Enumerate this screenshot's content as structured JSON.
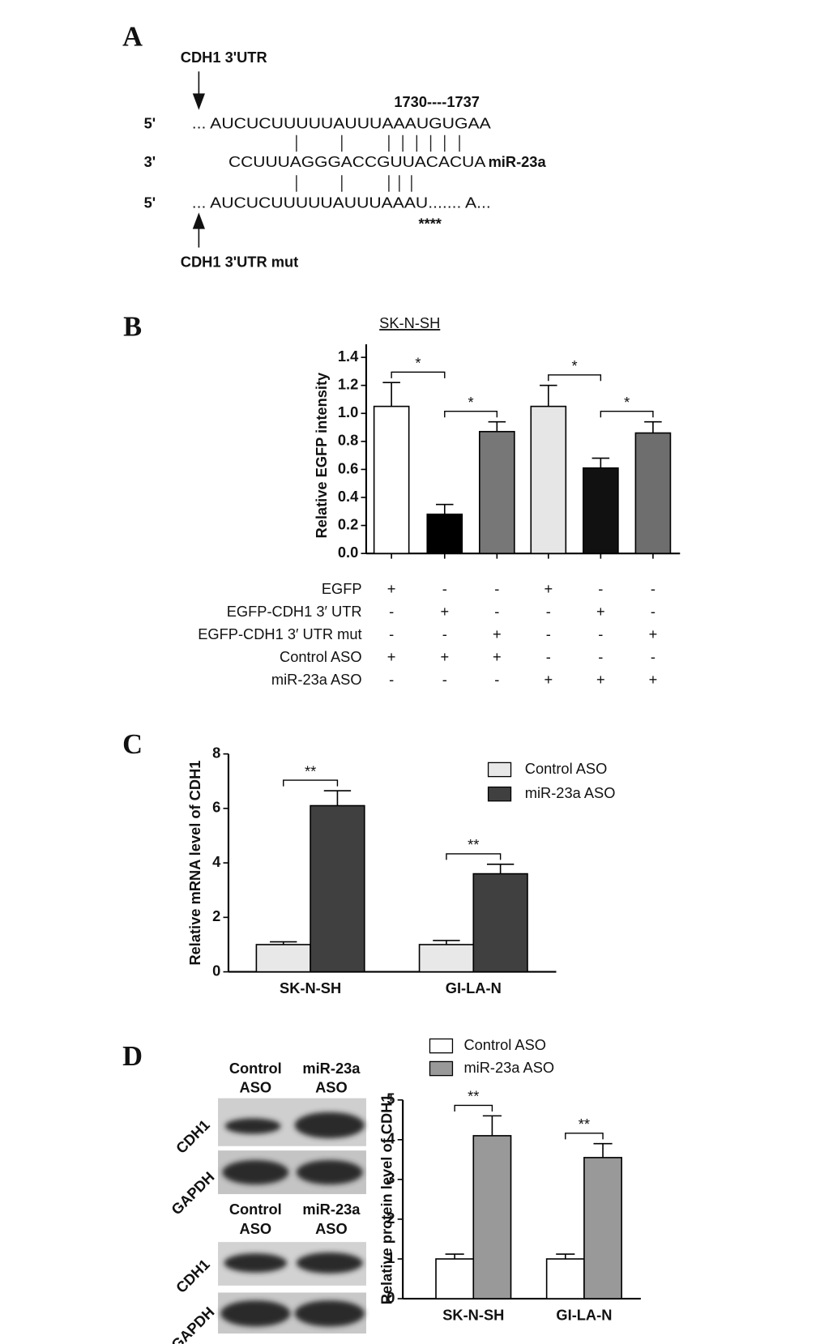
{
  "panel_labels": [
    "A",
    "B",
    "C",
    "D"
  ],
  "sequence": {
    "title": "CDH1 3'UTR",
    "position": "1730----1737",
    "rows": [
      {
        "end": "5'",
        "seq": "... AUCUCUUUUUAUUUAAAUGUGAA"
      },
      {
        "end": "3'",
        "seq": "CCUUUAGGGACCGUUACACUA",
        "name": "miR-23a"
      },
      {
        "end": "5'",
        "seq": "... AUCUCUUUUUAUUUAAAU....... A..."
      }
    ],
    "mutation": "****",
    "mutant_title": "CDH1 3'UTR mut"
  },
  "conditions": {
    "rows": [
      {
        "label": "EGFP",
        "signs": [
          "+",
          "-",
          "-",
          "+",
          "-",
          "-"
        ]
      },
      {
        "label": "EGFP-CDH1 3′ UTR",
        "signs": [
          "-",
          "+",
          "-",
          "-",
          "+",
          "-"
        ]
      },
      {
        "label": "EGFP-CDH1 3′ UTR mut",
        "signs": [
          "-",
          "-",
          "+",
          "-",
          "-",
          "+"
        ]
      },
      {
        "label": "Control ASO",
        "signs": [
          "+",
          "+",
          "+",
          "-",
          "-",
          "-"
        ]
      },
      {
        "label": "miR-23a ASO",
        "signs": [
          "-",
          "-",
          "-",
          "+",
          "+",
          "+"
        ]
      }
    ]
  },
  "blots": [
    {
      "headers": [
        [
          "Control",
          "ASO"
        ],
        [
          "miR-23a",
          "ASO"
        ]
      ],
      "rows": [
        "CDH1",
        "GAPDH"
      ]
    },
    {
      "headers": [
        [
          "Control",
          "ASO"
        ],
        [
          "miR-23a",
          "ASO"
        ]
      ],
      "rows": [
        "CDH1",
        "GAPDH"
      ]
    }
  ],
  "chart_data": [
    {
      "type": "bar",
      "title": "SK-N-SH",
      "ylabel": "Relative EGFP intensity",
      "values": [
        1.05,
        0.28,
        0.87,
        1.05,
        0.61,
        0.86
      ],
      "errors": [
        0.17,
        0.07,
        0.07,
        0.15,
        0.07,
        0.08
      ],
      "colors": [
        "#ffffff",
        "#000000",
        "#777777",
        "#e6e6e6",
        "#111111",
        "#6e6e6e"
      ],
      "ylim": [
        0,
        1.4
      ],
      "yticks": [
        {
          "value": 0,
          "label": "0.0"
        },
        0.2,
        0.4,
        0.6,
        0.8,
        {
          "value": 1,
          "label": "1.0"
        },
        1.2,
        1.4
      ],
      "significance": [
        "*",
        "*",
        "*",
        "*"
      ]
    },
    {
      "type": "grouped_bar",
      "ylabel": "Relative mRNA level of CDH1",
      "categories": [
        "SK-N-SH",
        "GI-LA-N"
      ],
      "series": [
        {
          "name": "Control ASO",
          "color": "#e8e8e8",
          "values": [
            1.0,
            1.0
          ],
          "errors": [
            0.1,
            0.15
          ]
        },
        {
          "name": "miR-23a ASO",
          "color": "#404040",
          "values": [
            6.1,
            3.6
          ],
          "errors": [
            0.55,
            0.35
          ]
        }
      ],
      "ylim": [
        0,
        8
      ],
      "yticks": [
        0,
        2,
        4,
        6,
        8
      ],
      "significance": [
        "**",
        "**"
      ],
      "legend": "upper right"
    },
    {
      "type": "grouped_bar",
      "ylabel": "Relative protein level of CDH1",
      "categories": [
        "SK-N-SH",
        "GI-LA-N"
      ],
      "series": [
        {
          "name": "Control ASO",
          "color": "#ffffff",
          "values": [
            1.0,
            1.0
          ],
          "errors": [
            0.12,
            0.12
          ]
        },
        {
          "name": "miR-23a ASO",
          "color": "#999999",
          "values": [
            4.1,
            3.55
          ],
          "errors": [
            0.5,
            0.35
          ]
        }
      ],
      "ylim": [
        0,
        5
      ],
      "yticks": [
        0,
        1,
        2,
        3,
        4,
        5
      ],
      "significance": [
        "**",
        "**"
      ],
      "legend": "above"
    }
  ]
}
